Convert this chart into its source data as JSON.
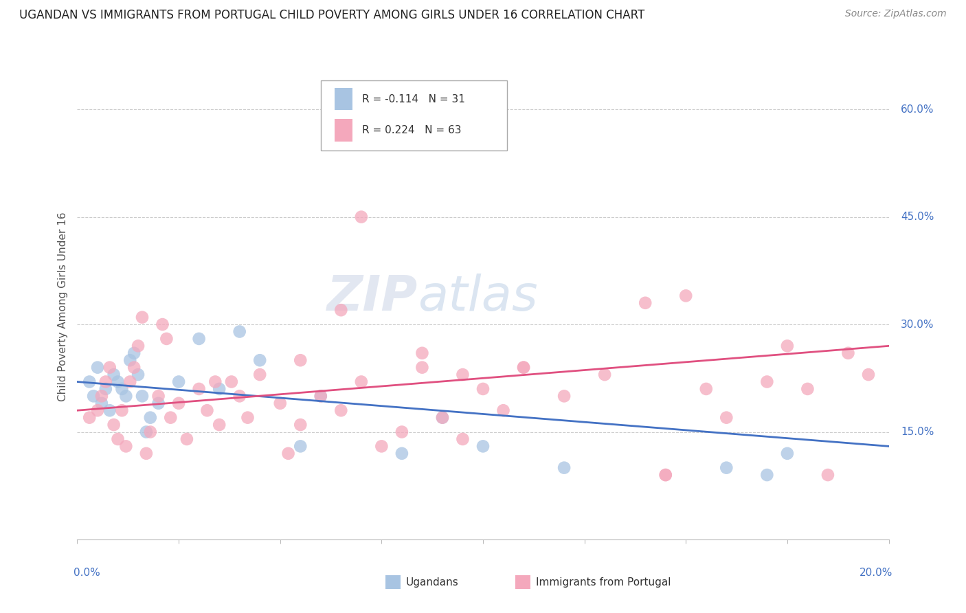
{
  "title": "UGANDAN VS IMMIGRANTS FROM PORTUGAL CHILD POVERTY AMONG GIRLS UNDER 16 CORRELATION CHART",
  "source": "Source: ZipAtlas.com",
  "ylabel": "Child Poverty Among Girls Under 16",
  "ugandans_label": "Ugandans",
  "portugal_label": "Immigrants from Portugal",
  "ugandans_R": -0.114,
  "ugandans_N": 31,
  "portugal_R": 0.224,
  "portugal_N": 63,
  "ugandans_color": "#a8c4e2",
  "portugal_color": "#f4a8bc",
  "ugandans_line_color": "#4472c4",
  "portugal_line_color": "#e05080",
  "background_color": "#ffffff",
  "xlim": [
    0.0,
    20.0
  ],
  "ylim": [
    0.0,
    65.0
  ],
  "yticks": [
    15,
    30,
    45,
    60
  ],
  "ytick_labels": [
    "15.0%",
    "30.0%",
    "45.0%",
    "60.0%"
  ],
  "ugandans_x": [
    0.3,
    0.4,
    0.5,
    0.6,
    0.7,
    0.8,
    0.9,
    1.0,
    1.1,
    1.2,
    1.3,
    1.4,
    1.5,
    1.6,
    1.7,
    1.8,
    2.0,
    2.5,
    3.0,
    3.5,
    4.0,
    4.5,
    5.5,
    6.0,
    8.0,
    9.0,
    10.0,
    12.0,
    16.0,
    17.0,
    17.5
  ],
  "ugandans_y": [
    22.0,
    20.0,
    24.0,
    19.0,
    21.0,
    18.0,
    23.0,
    22.0,
    21.0,
    20.0,
    25.0,
    26.0,
    23.0,
    20.0,
    15.0,
    17.0,
    19.0,
    22.0,
    28.0,
    21.0,
    29.0,
    25.0,
    13.0,
    20.0,
    12.0,
    17.0,
    13.0,
    10.0,
    10.0,
    9.0,
    12.0
  ],
  "portugal_x": [
    0.3,
    0.5,
    0.6,
    0.7,
    0.8,
    0.9,
    1.0,
    1.1,
    1.2,
    1.3,
    1.4,
    1.5,
    1.6,
    1.7,
    1.8,
    2.0,
    2.1,
    2.2,
    2.3,
    2.5,
    2.7,
    3.0,
    3.2,
    3.4,
    3.5,
    3.8,
    4.0,
    4.2,
    4.5,
    5.0,
    5.2,
    5.5,
    6.0,
    6.5,
    7.0,
    7.5,
    8.0,
    8.5,
    9.0,
    9.5,
    10.0,
    11.0,
    12.0,
    13.0,
    14.0,
    14.5,
    15.0,
    15.5,
    16.0,
    17.0,
    18.0,
    18.5,
    19.0,
    19.5,
    7.0,
    8.5,
    9.5,
    10.5,
    6.5,
    5.5,
    11.0,
    14.5,
    17.5
  ],
  "portugal_y": [
    17.0,
    18.0,
    20.0,
    22.0,
    24.0,
    16.0,
    14.0,
    18.0,
    13.0,
    22.0,
    24.0,
    27.0,
    31.0,
    12.0,
    15.0,
    20.0,
    30.0,
    28.0,
    17.0,
    19.0,
    14.0,
    21.0,
    18.0,
    22.0,
    16.0,
    22.0,
    20.0,
    17.0,
    23.0,
    19.0,
    12.0,
    16.0,
    20.0,
    18.0,
    22.0,
    13.0,
    15.0,
    24.0,
    17.0,
    23.0,
    21.0,
    24.0,
    20.0,
    23.0,
    33.0,
    9.0,
    34.0,
    21.0,
    17.0,
    22.0,
    21.0,
    9.0,
    26.0,
    23.0,
    45.0,
    26.0,
    14.0,
    18.0,
    32.0,
    25.0,
    24.0,
    9.0,
    27.0
  ],
  "watermark_text": "ZIPatlas",
  "ugandan_line_y0": 22.0,
  "ugandan_line_y1": 13.0,
  "portugal_line_y0": 18.0,
  "portugal_line_y1": 27.0
}
